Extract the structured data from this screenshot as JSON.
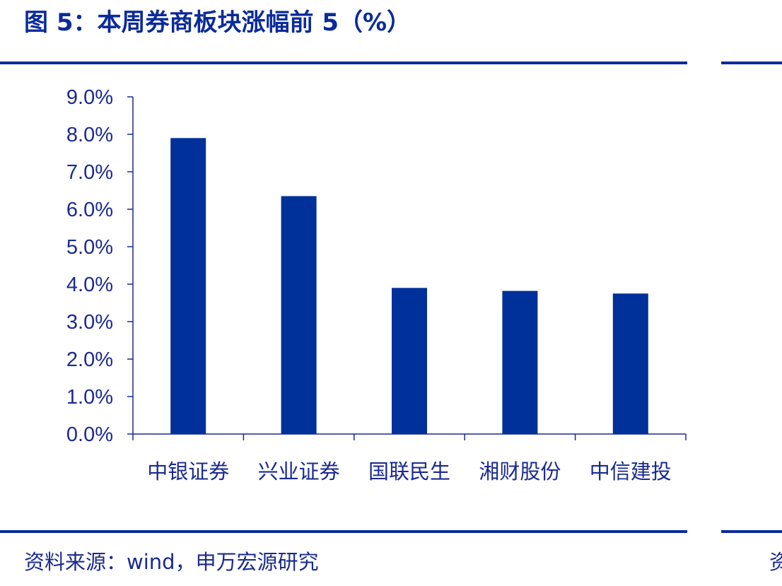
{
  "figure": {
    "title": "图 5：本周券商板块涨幅前 5（%）",
    "source": "资料来源：wind，申万宏源研究",
    "edge_glyph": "资"
  },
  "colors": {
    "bar": "#00309a",
    "axis": "#1a2a8f",
    "rule": "#0b2b9a",
    "text": "#1a2a8f"
  },
  "chart_data": {
    "type": "bar",
    "categories": [
      "中银证券",
      "兴业证券",
      "国联民生",
      "湘财股份",
      "中信建投"
    ],
    "values": [
      7.9,
      6.35,
      3.9,
      3.82,
      3.75
    ],
    "ylim": [
      0,
      9
    ],
    "yticks": [
      "0.0%",
      "1.0%",
      "2.0%",
      "3.0%",
      "4.0%",
      "5.0%",
      "6.0%",
      "7.0%",
      "8.0%",
      "9.0%"
    ],
    "ytick_values": [
      0,
      1,
      2,
      3,
      4,
      5,
      6,
      7,
      8,
      9
    ],
    "grid": false,
    "legend": "none",
    "xlabel": "",
    "ylabel": ""
  }
}
